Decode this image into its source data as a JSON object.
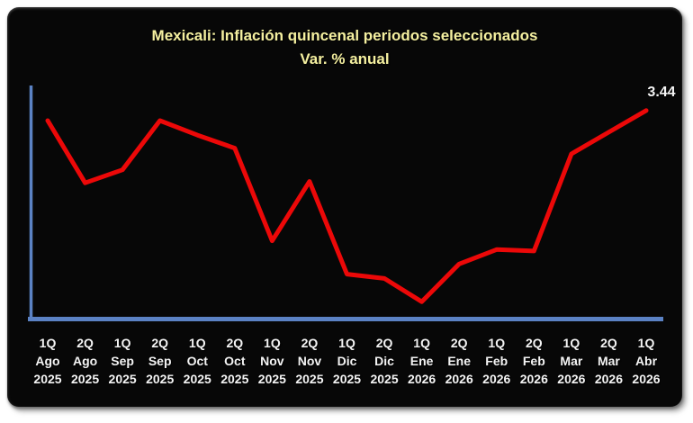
{
  "page": {
    "background_color": "#ffffff",
    "panel_color": "#070707"
  },
  "title": {
    "line1": "Mexicali: Inflación quincenal periodos seleccionados",
    "line2": "Var. % anual",
    "color": "#f5f0a0"
  },
  "chart_data": {
    "type": "line",
    "title": "Mexicali: Inflación quincenal periodos seleccionados",
    "subtitle": "Var. % anual",
    "categories": [
      [
        "1Q",
        "Ago",
        "2025"
      ],
      [
        "2Q",
        "Ago",
        "2025"
      ],
      [
        "1Q",
        "Sep",
        "2025"
      ],
      [
        "2Q",
        "Sep",
        "2025"
      ],
      [
        "1Q",
        "Oct",
        "2025"
      ],
      [
        "2Q",
        "Oct",
        "2025"
      ],
      [
        "1Q",
        "Nov",
        "2025"
      ],
      [
        "2Q",
        "Nov",
        "2025"
      ],
      [
        "1Q",
        "Dic",
        "2025"
      ],
      [
        "2Q",
        "Dic",
        "2025"
      ],
      [
        "1Q",
        "Ene",
        "2026"
      ],
      [
        "2Q",
        "Ene",
        "2026"
      ],
      [
        "1Q",
        "Feb",
        "2026"
      ],
      [
        "2Q",
        "Feb",
        "2026"
      ],
      [
        "1Q",
        "Mar",
        "2026"
      ],
      [
        "2Q",
        "Mar",
        "2026"
      ],
      [
        "1Q",
        "Abr",
        "2026"
      ]
    ],
    "series": [
      {
        "name": "Inflación quincenal Var. % anual",
        "values": [
          3.37,
          2.94,
          3.03,
          3.37,
          3.27,
          3.18,
          2.54,
          2.95,
          2.31,
          2.28,
          2.12,
          2.38,
          2.48,
          2.47,
          3.14,
          3.29,
          3.44
        ]
      }
    ],
    "end_label": "3.44",
    "xlabel": "",
    "ylabel": "",
    "ylim": [
      2.0,
      3.6
    ],
    "grid": false,
    "legend": false,
    "line_color": "#ec0808",
    "axis_color": "#5b82c4",
    "label_color": "#f4f4f4",
    "end_label_color": "#f4f4f4"
  }
}
